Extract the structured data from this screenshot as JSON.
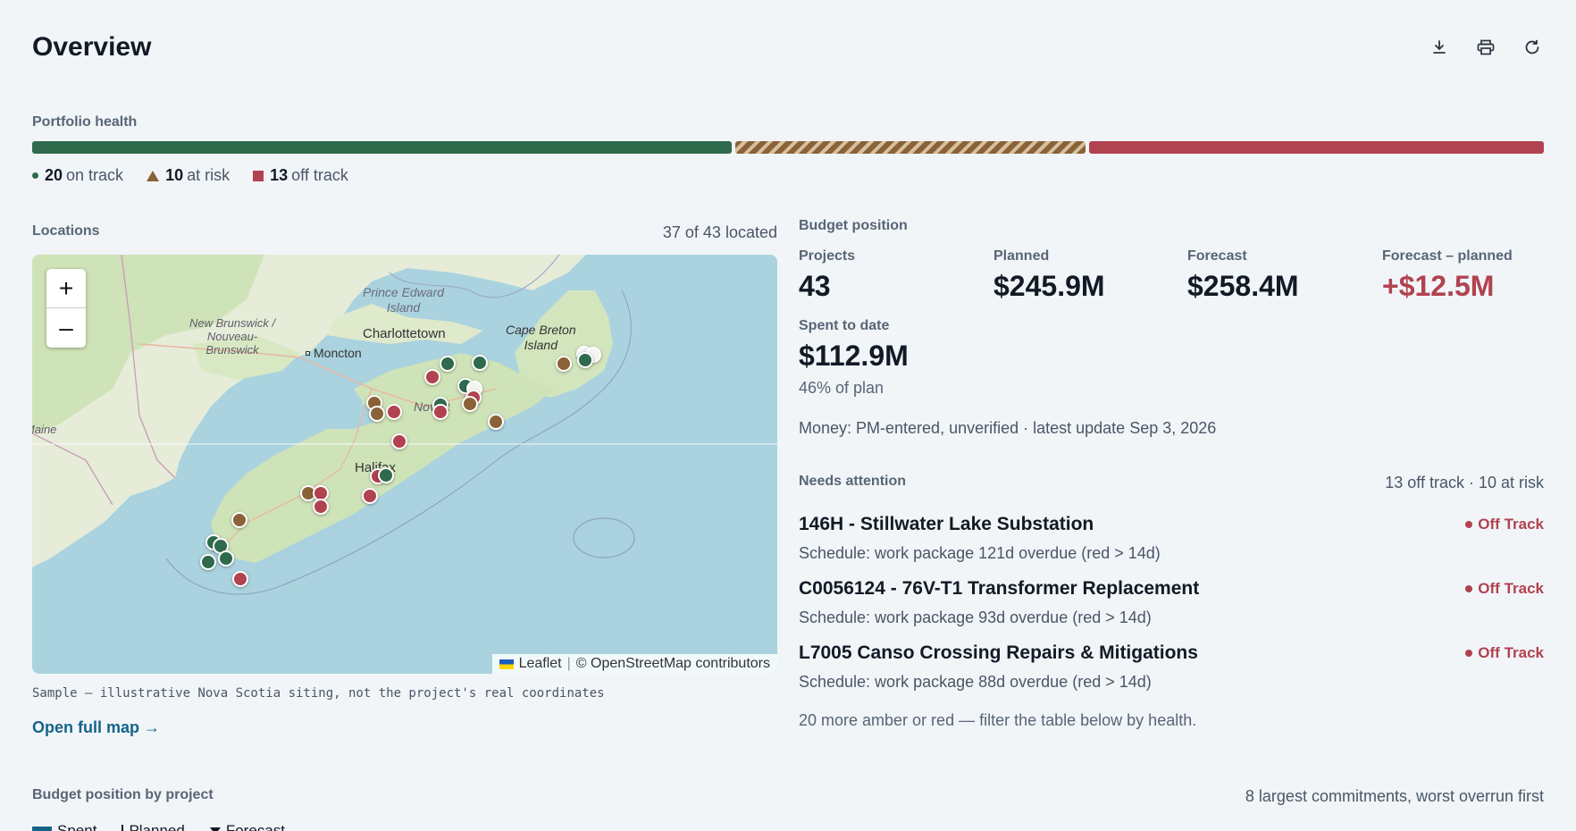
{
  "header": {
    "title": "Overview"
  },
  "toolbar": {
    "download_icon": "download-icon",
    "print_icon": "print-icon",
    "refresh_icon": "refresh-icon"
  },
  "health": {
    "label": "Portfolio health",
    "on_track": {
      "count": "20",
      "text": "on track",
      "color": "#2f6a4d"
    },
    "at_risk": {
      "count": "10",
      "text": "at risk",
      "color": "#8a6237"
    },
    "off_track": {
      "count": "13",
      "text": "off track",
      "color": "#b1424f"
    }
  },
  "locations": {
    "label": "Locations",
    "count": "37 of 43 located",
    "map": {
      "zoom_in": "+",
      "zoom_out": "–",
      "attribution_leaflet": "Leaflet",
      "attribution_osm": "© OpenStreetMap contributors",
      "labels": [
        "Prince Edward",
        "Island",
        "Charlottetown",
        "New Brunswick /",
        "Nouveau-",
        "Brunswick",
        "Moncton",
        "Cape Breton",
        "Island",
        "Halifax",
        "Nova Scotia",
        "Maine"
      ]
    },
    "note": "Sample — illustrative Nova Scotia siting, not the project's real coordinates",
    "open_link": "Open full map →"
  },
  "budget": {
    "label": "Budget position",
    "projects_label": "Projects",
    "projects_value": "43",
    "planned_label": "Planned",
    "planned_value": "$245.9M",
    "forecast_label": "Forecast",
    "forecast_value": "$258.4M",
    "delta_label": "Forecast – planned",
    "delta_value": "+$12.5M",
    "spent_label": "Spent to date",
    "spent_value": "$112.9M",
    "spent_pct": "46% of plan",
    "money_note": "Money: PM-entered, unverified · latest update Sep 3, 2026"
  },
  "attention": {
    "label": "Needs attention",
    "count": "13 off track · 10 at risk",
    "items": [
      {
        "title": "146H - Stillwater Lake Substation",
        "sub": "Schedule: work package 121d overdue (red > 14d)",
        "status": "Off Track"
      },
      {
        "title": "C0056124 - 76V-T1 Transformer Replacement",
        "sub": "Schedule: work package 93d overdue (red > 14d)",
        "status": "Off Track"
      },
      {
        "title": "L7005 Canso Crossing Repairs & Mitigations",
        "sub": "Schedule: work package 88d overdue (red > 14d)",
        "status": "Off Track"
      }
    ],
    "more": "20 more amber or red — filter the table below by health."
  },
  "by_project": {
    "label": "Budget position by project",
    "note": "8 largest commitments, worst overrun first",
    "legend_spent": "Spent",
    "legend_planned": "Planned",
    "legend_forecast": "Forecast"
  }
}
